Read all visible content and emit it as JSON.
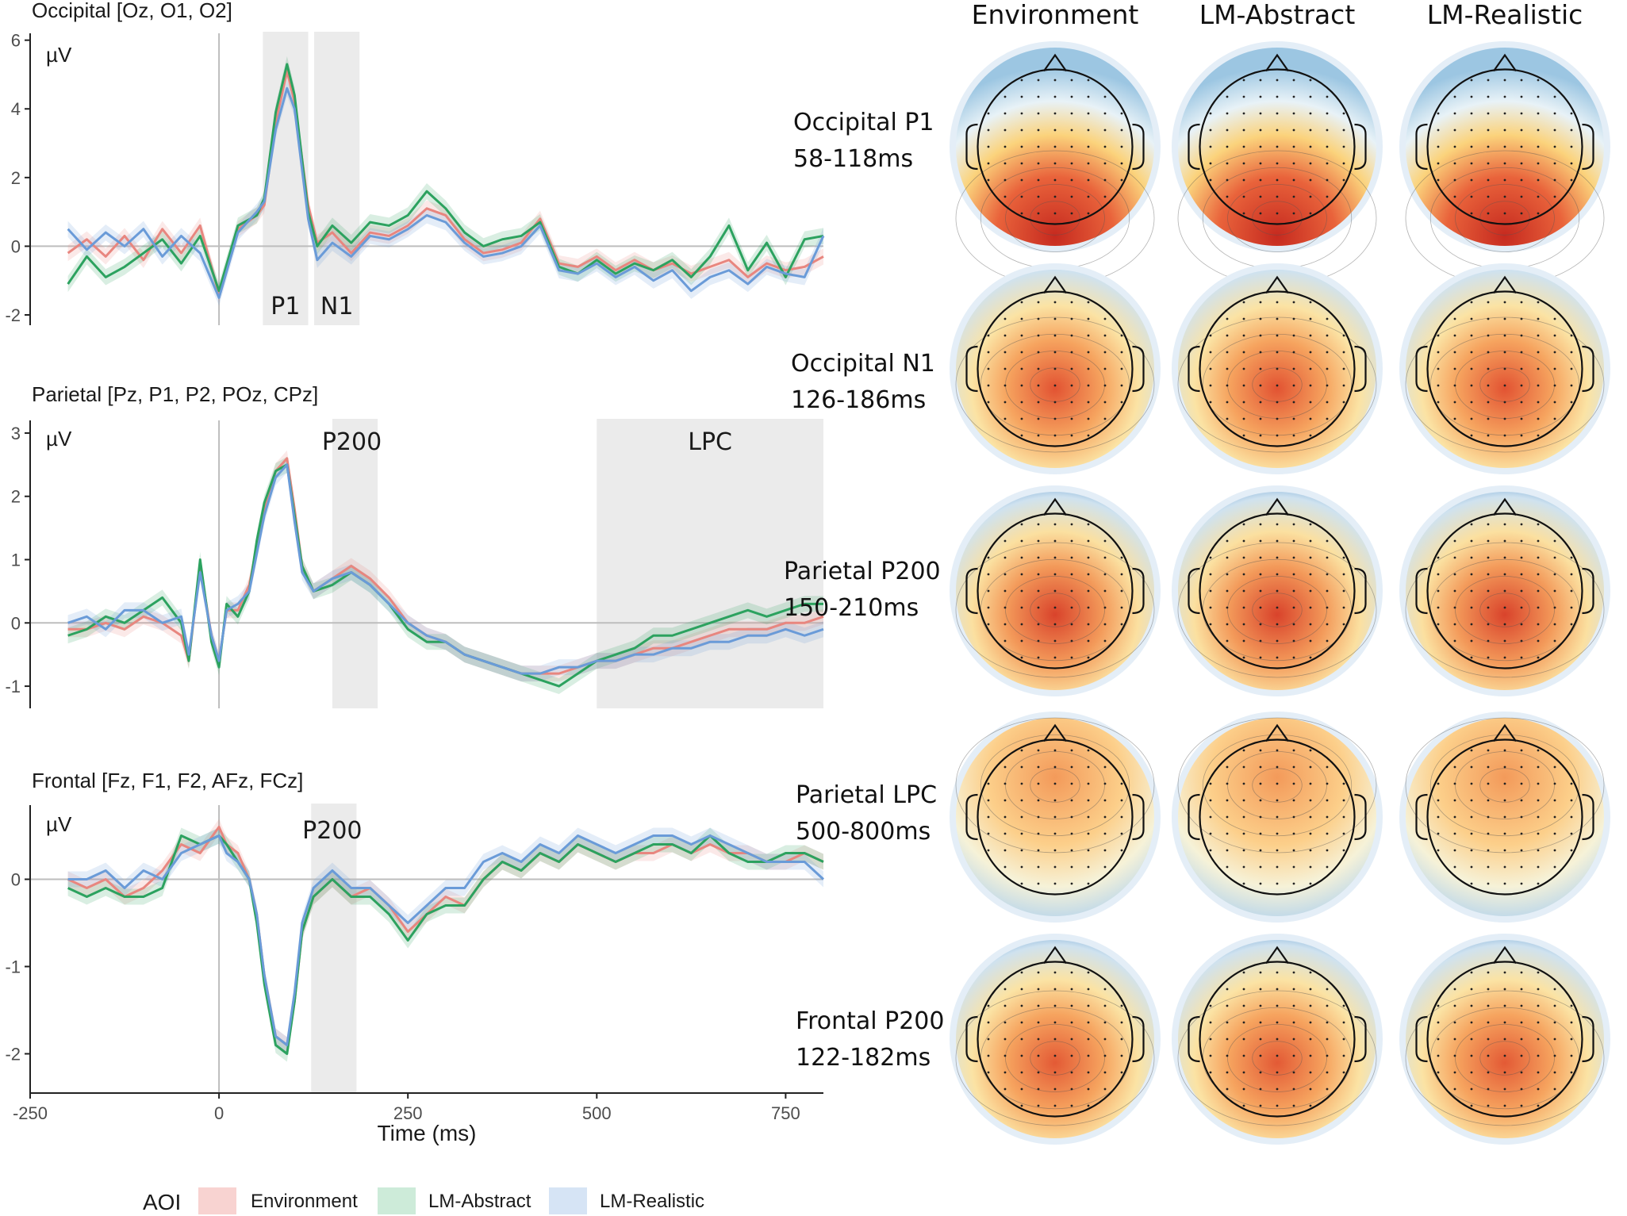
{
  "chart_data": [
    {
      "type": "line",
      "title": "Occipital [Oz, O1, O2]",
      "ylabel": "µV",
      "xlabel": "",
      "xlim": [
        -250,
        800
      ],
      "ylim": [
        -2.3,
        6.2
      ],
      "yticks": [
        -2,
        0,
        2,
        4,
        6
      ],
      "xticks": [
        -250,
        0,
        250,
        500,
        750
      ],
      "windows": [
        {
          "label": "P1",
          "start": 58,
          "end": 118
        },
        {
          "label": "N1",
          "start": 126,
          "end": 186
        }
      ],
      "x": [
        -200,
        -175,
        -150,
        -125,
        -100,
        -75,
        -50,
        -25,
        0,
        25,
        50,
        60,
        75,
        90,
        100,
        118,
        130,
        150,
        175,
        200,
        225,
        250,
        275,
        300,
        325,
        350,
        375,
        400,
        425,
        450,
        475,
        500,
        525,
        550,
        575,
        600,
        625,
        650,
        675,
        700,
        725,
        750,
        775,
        800
      ],
      "series": [
        {
          "name": "Environment",
          "color": "#e8867f",
          "values": [
            -0.2,
            0.2,
            -0.3,
            0.3,
            -0.4,
            0.5,
            -0.2,
            0.6,
            -1.4,
            0.5,
            0.9,
            1.2,
            3.6,
            5.1,
            4.2,
            1.2,
            0.1,
            0.4,
            -0.2,
            0.4,
            0.3,
            0.6,
            1.1,
            0.9,
            0.2,
            -0.2,
            -0.1,
            0.1,
            0.8,
            -0.5,
            -0.6,
            -0.3,
            -0.7,
            -0.4,
            -0.7,
            -0.5,
            -0.8,
            -0.6,
            -0.4,
            -0.9,
            -0.5,
            -0.7,
            -0.6,
            -0.3
          ]
        },
        {
          "name": "LM-Abstract",
          "color": "#2ca25f",
          "values": [
            -1.1,
            -0.3,
            -0.9,
            -0.6,
            -0.2,
            0.2,
            -0.5,
            0.3,
            -1.3,
            0.6,
            0.9,
            1.4,
            3.9,
            5.3,
            4.4,
            1.0,
            0.0,
            0.6,
            0.1,
            0.7,
            0.6,
            0.9,
            1.6,
            1.1,
            0.4,
            0.0,
            0.2,
            0.3,
            0.7,
            -0.6,
            -0.8,
            -0.4,
            -0.8,
            -0.5,
            -0.7,
            -0.4,
            -0.9,
            -0.3,
            0.6,
            -0.7,
            0.1,
            -0.9,
            0.2,
            0.3
          ]
        },
        {
          "name": "LM-Realistic",
          "color": "#6a9bd8",
          "values": [
            0.5,
            -0.1,
            0.4,
            0.0,
            0.5,
            -0.3,
            0.3,
            -0.2,
            -1.5,
            0.4,
            1.0,
            1.3,
            3.4,
            4.6,
            4.0,
            0.8,
            -0.4,
            0.1,
            -0.3,
            0.3,
            0.2,
            0.5,
            0.9,
            0.7,
            0.1,
            -0.3,
            -0.2,
            0.0,
            0.6,
            -0.7,
            -0.8,
            -0.5,
            -0.9,
            -0.6,
            -1.0,
            -0.7,
            -1.3,
            -0.9,
            -0.7,
            -1.1,
            -0.6,
            -0.8,
            -0.9,
            0.3
          ]
        }
      ]
    },
    {
      "type": "line",
      "title": "Parietal [Pz, P1, P2, POz, CPz]",
      "ylabel": "µV",
      "xlabel": "",
      "xlim": [
        -250,
        800
      ],
      "ylim": [
        -1.35,
        3.2
      ],
      "yticks": [
        -1,
        0,
        1,
        2,
        3
      ],
      "xticks": [
        -250,
        0,
        250,
        500,
        750
      ],
      "windows": [
        {
          "label": "P200",
          "start": 150,
          "end": 210
        },
        {
          "label": "LPC",
          "start": 500,
          "end": 800
        }
      ],
      "x": [
        -200,
        -175,
        -150,
        -125,
        -100,
        -75,
        -50,
        -40,
        -25,
        -10,
        0,
        10,
        25,
        40,
        50,
        60,
        75,
        90,
        100,
        110,
        125,
        150,
        175,
        200,
        225,
        250,
        275,
        300,
        325,
        350,
        375,
        400,
        425,
        450,
        475,
        500,
        525,
        550,
        575,
        600,
        625,
        650,
        675,
        700,
        725,
        750,
        775,
        800
      ],
      "series": [
        {
          "name": "Environment",
          "color": "#e8867f",
          "values": [
            -0.1,
            -0.1,
            0.0,
            -0.1,
            0.1,
            0.0,
            -0.2,
            -0.6,
            0.9,
            -0.2,
            -0.6,
            0.2,
            0.2,
            0.6,
            1.2,
            1.8,
            2.4,
            2.6,
            1.8,
            0.9,
            0.5,
            0.7,
            0.9,
            0.7,
            0.4,
            0.0,
            -0.2,
            -0.3,
            -0.5,
            -0.6,
            -0.7,
            -0.8,
            -0.8,
            -0.8,
            -0.7,
            -0.6,
            -0.6,
            -0.5,
            -0.4,
            -0.4,
            -0.3,
            -0.2,
            -0.1,
            -0.1,
            -0.1,
            0.0,
            0.0,
            0.1
          ]
        },
        {
          "name": "LM-Abstract",
          "color": "#2ca25f",
          "values": [
            -0.2,
            -0.1,
            0.1,
            0.0,
            0.2,
            0.4,
            0.0,
            -0.6,
            1.0,
            -0.3,
            -0.7,
            0.3,
            0.1,
            0.5,
            1.3,
            1.9,
            2.4,
            2.5,
            1.7,
            0.9,
            0.5,
            0.6,
            0.8,
            0.6,
            0.3,
            -0.1,
            -0.3,
            -0.3,
            -0.5,
            -0.6,
            -0.7,
            -0.8,
            -0.9,
            -1.0,
            -0.8,
            -0.6,
            -0.5,
            -0.4,
            -0.2,
            -0.2,
            -0.1,
            0.0,
            0.1,
            0.2,
            0.1,
            0.2,
            0.3,
            0.3
          ]
        },
        {
          "name": "LM-Realistic",
          "color": "#6a9bd8",
          "values": [
            0.0,
            0.1,
            -0.1,
            0.2,
            0.2,
            0.0,
            0.1,
            -0.5,
            0.8,
            -0.2,
            -0.6,
            0.2,
            0.3,
            0.5,
            1.1,
            1.7,
            2.3,
            2.5,
            1.6,
            0.8,
            0.5,
            0.7,
            0.8,
            0.6,
            0.3,
            0.0,
            -0.2,
            -0.3,
            -0.5,
            -0.6,
            -0.7,
            -0.8,
            -0.8,
            -0.7,
            -0.7,
            -0.6,
            -0.6,
            -0.5,
            -0.5,
            -0.4,
            -0.4,
            -0.3,
            -0.3,
            -0.2,
            -0.2,
            -0.1,
            -0.2,
            -0.1
          ]
        }
      ]
    },
    {
      "type": "line",
      "title": "Frontal [Fz, F1, F2, AFz, FCz]",
      "ylabel": "µV",
      "xlabel": "Time (ms)",
      "xlim": [
        -250,
        800
      ],
      "ylim": [
        -2.45,
        0.85
      ],
      "yticks": [
        -2,
        -1,
        0
      ],
      "xticks": [
        -250,
        0,
        250,
        500,
        750
      ],
      "windows": [
        {
          "label": "P200",
          "start": 122,
          "end": 182
        }
      ],
      "x": [
        -200,
        -175,
        -150,
        -125,
        -100,
        -75,
        -50,
        -25,
        0,
        10,
        25,
        40,
        50,
        60,
        75,
        90,
        100,
        110,
        125,
        150,
        175,
        200,
        225,
        250,
        275,
        300,
        325,
        350,
        375,
        400,
        425,
        450,
        475,
        500,
        525,
        550,
        575,
        600,
        625,
        650,
        675,
        700,
        725,
        750,
        775,
        800
      ],
      "series": [
        {
          "name": "Environment",
          "color": "#e8867f",
          "values": [
            0.0,
            -0.1,
            0.0,
            -0.2,
            -0.1,
            0.1,
            0.4,
            0.3,
            0.6,
            0.4,
            0.3,
            0.0,
            -0.4,
            -1.1,
            -1.8,
            -1.9,
            -1.4,
            -0.6,
            -0.2,
            0.0,
            -0.2,
            -0.1,
            -0.3,
            -0.6,
            -0.4,
            -0.2,
            -0.3,
            0.0,
            0.2,
            0.1,
            0.3,
            0.2,
            0.4,
            0.3,
            0.2,
            0.3,
            0.3,
            0.4,
            0.3,
            0.4,
            0.3,
            0.3,
            0.2,
            0.2,
            0.3,
            0.2
          ]
        },
        {
          "name": "LM-Abstract",
          "color": "#2ca25f",
          "values": [
            -0.1,
            -0.2,
            -0.1,
            -0.2,
            -0.2,
            -0.1,
            0.5,
            0.4,
            0.5,
            0.4,
            0.2,
            0.0,
            -0.5,
            -1.2,
            -1.9,
            -2.0,
            -1.4,
            -0.6,
            -0.2,
            0.0,
            -0.2,
            -0.2,
            -0.4,
            -0.7,
            -0.4,
            -0.3,
            -0.3,
            0.0,
            0.2,
            0.1,
            0.3,
            0.2,
            0.4,
            0.3,
            0.2,
            0.3,
            0.4,
            0.4,
            0.3,
            0.5,
            0.3,
            0.2,
            0.2,
            0.3,
            0.3,
            0.2
          ]
        },
        {
          "name": "LM-Realistic",
          "color": "#6a9bd8",
          "values": [
            0.0,
            0.0,
            0.1,
            -0.1,
            0.1,
            0.0,
            0.3,
            0.4,
            0.5,
            0.3,
            0.2,
            0.0,
            -0.4,
            -1.1,
            -1.8,
            -1.9,
            -1.3,
            -0.5,
            -0.1,
            0.1,
            -0.1,
            -0.1,
            -0.3,
            -0.5,
            -0.3,
            -0.1,
            -0.1,
            0.2,
            0.3,
            0.2,
            0.4,
            0.3,
            0.5,
            0.4,
            0.3,
            0.4,
            0.5,
            0.5,
            0.4,
            0.5,
            0.4,
            0.3,
            0.2,
            0.2,
            0.2,
            0.0
          ]
        }
      ]
    }
  ],
  "legend": {
    "title": "AOI",
    "items": [
      {
        "name": "Environment",
        "fill": "#f8d3d1"
      },
      {
        "name": "LM-Abstract",
        "fill": "#cdebd9"
      },
      {
        "name": "LM-Realistic",
        "fill": "#d6e4f5"
      }
    ]
  },
  "topomaps": {
    "columns": [
      "Environment",
      "LM-Abstract",
      "LM-Realistic"
    ],
    "rows": [
      {
        "component": "Occipital P1",
        "window": "58-118ms"
      },
      {
        "component": "Occipital N1",
        "window": "126-186ms"
      },
      {
        "component": "Parietal P200",
        "window": "150-210ms"
      },
      {
        "component": "Parietal LPC",
        "window": "500-800ms"
      },
      {
        "component": "Frontal P200",
        "window": "122-182ms"
      }
    ]
  }
}
